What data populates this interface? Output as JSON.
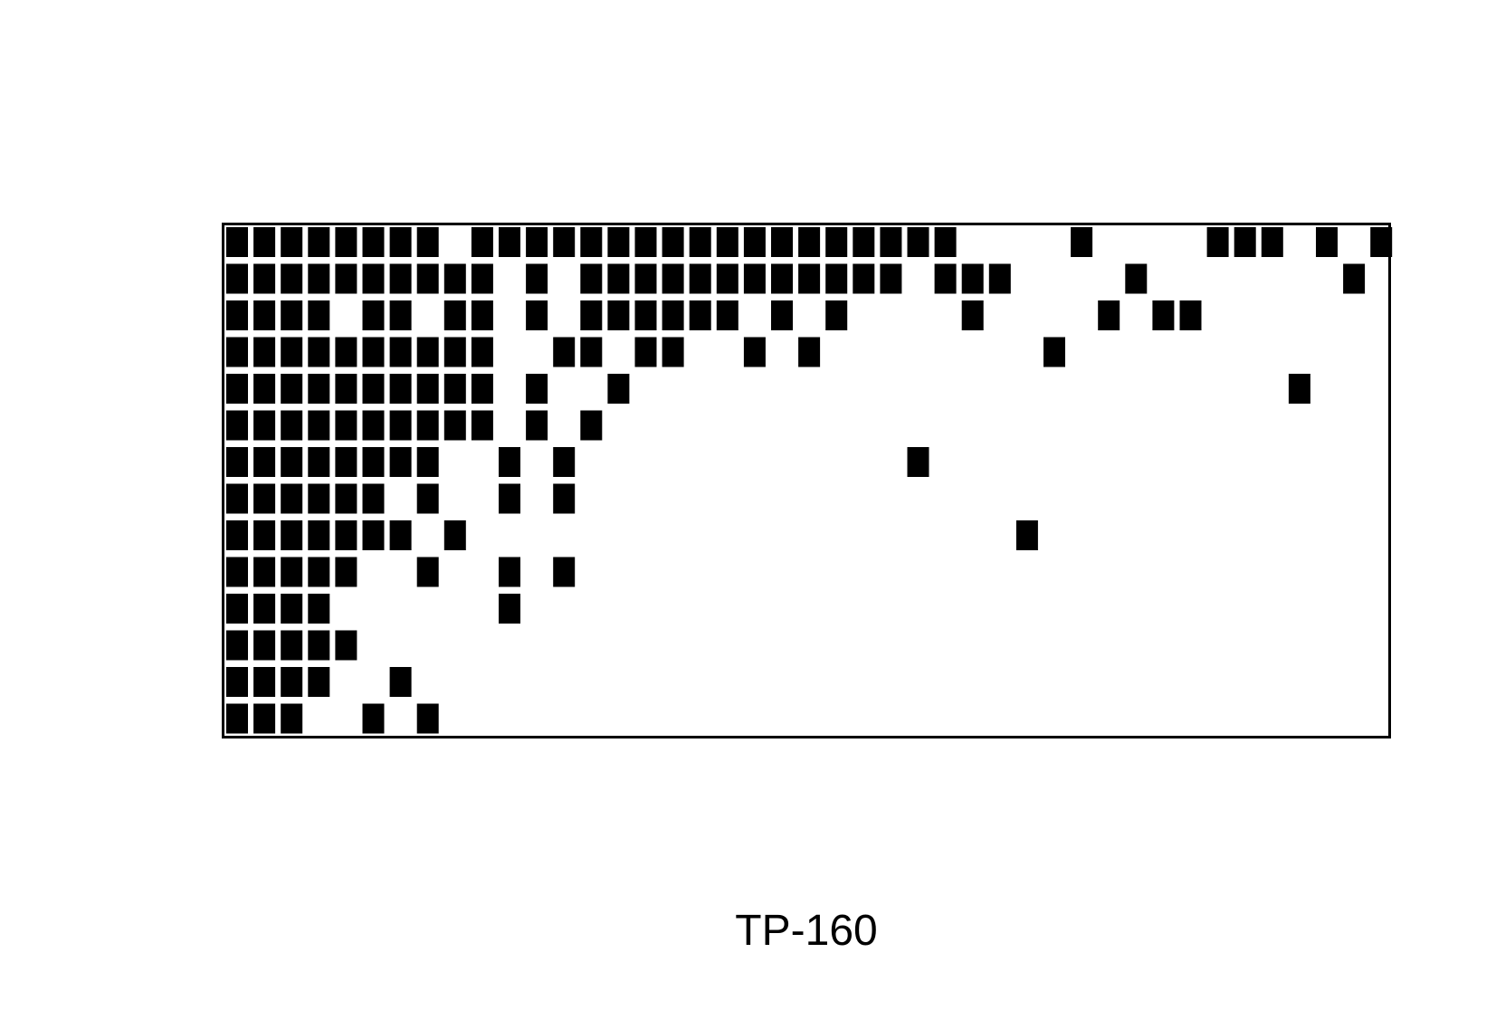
{
  "chart_data": {
    "type": "heatmap",
    "title": "",
    "xlabel": "TP-160",
    "ylabel": "",
    "n_cols": 43,
    "n_rows": 14,
    "cell_color": "#000000",
    "background_color": "#ffffff",
    "frame_color": "#000000",
    "grid": false,
    "legend": "none",
    "filled_columns_by_row": [
      [
        0,
        1,
        2,
        3,
        4,
        5,
        6,
        7,
        9,
        10,
        11,
        12,
        13,
        14,
        15,
        16,
        17,
        18,
        19,
        20,
        21,
        22,
        23,
        24,
        25,
        26,
        31,
        36,
        37,
        38,
        40,
        42
      ],
      [
        0,
        1,
        2,
        3,
        4,
        5,
        6,
        7,
        8,
        9,
        11,
        13,
        14,
        15,
        16,
        17,
        18,
        19,
        20,
        21,
        22,
        23,
        24,
        26,
        27,
        28,
        33,
        41
      ],
      [
        0,
        1,
        2,
        3,
        5,
        6,
        8,
        9,
        11,
        13,
        14,
        15,
        16,
        17,
        18,
        20,
        22,
        27,
        32,
        34,
        35
      ],
      [
        0,
        1,
        2,
        3,
        4,
        5,
        6,
        7,
        8,
        9,
        12,
        13,
        15,
        16,
        19,
        21,
        30
      ],
      [
        0,
        1,
        2,
        3,
        4,
        5,
        6,
        7,
        8,
        9,
        11,
        14,
        39
      ],
      [
        0,
        1,
        2,
        3,
        4,
        5,
        6,
        7,
        8,
        9,
        11,
        13
      ],
      [
        0,
        1,
        2,
        3,
        4,
        5,
        6,
        7,
        10,
        12,
        25
      ],
      [
        0,
        1,
        2,
        3,
        4,
        5,
        7,
        10,
        12
      ],
      [
        0,
        1,
        2,
        3,
        4,
        5,
        6,
        8,
        29
      ],
      [
        0,
        1,
        2,
        3,
        4,
        7,
        10,
        12
      ],
      [
        0,
        1,
        2,
        3,
        10
      ],
      [
        0,
        1,
        2,
        3,
        4
      ],
      [
        0,
        1,
        2,
        3,
        6
      ],
      [
        0,
        1,
        2,
        5,
        7
      ]
    ]
  }
}
